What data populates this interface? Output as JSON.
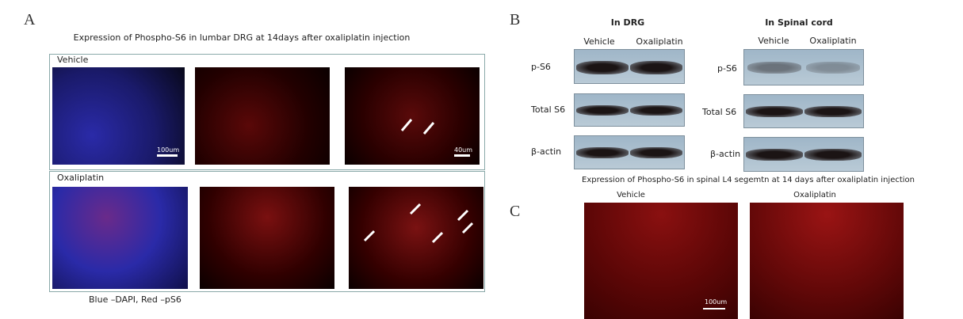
{
  "panel_a": {
    "label": "A",
    "title": "Expression of Phospho-S6 in lumbar DRG at 14days after oxaliplatin injection",
    "rows": [
      {
        "label": "Vehicle",
        "scale_bars": [
          "100um",
          "40um"
        ]
      },
      {
        "label": "Oxaliplatin"
      }
    ],
    "legend": "Blue –DAPI, Red –pS6"
  },
  "panel_b": {
    "label": "B",
    "blots": [
      {
        "title": "In DRG",
        "lanes": [
          "Vehicle",
          "Oxaliplatin"
        ],
        "bands": [
          "p-S6",
          "Total S6",
          "β-actin"
        ]
      },
      {
        "title": "In Spinal cord",
        "lanes": [
          "Vehicle",
          "Oxaliplatin"
        ],
        "bands": [
          "p-S6",
          "Total S6",
          "β-actin"
        ]
      }
    ]
  },
  "panel_c": {
    "label": "C",
    "title": "Expression of Phospho-S6 in spinal L4 segemtn at 14 days after oxaliplatin injection",
    "images": [
      "Vehicle",
      "Oxaliplatin"
    ],
    "scale_bar": "100um"
  }
}
